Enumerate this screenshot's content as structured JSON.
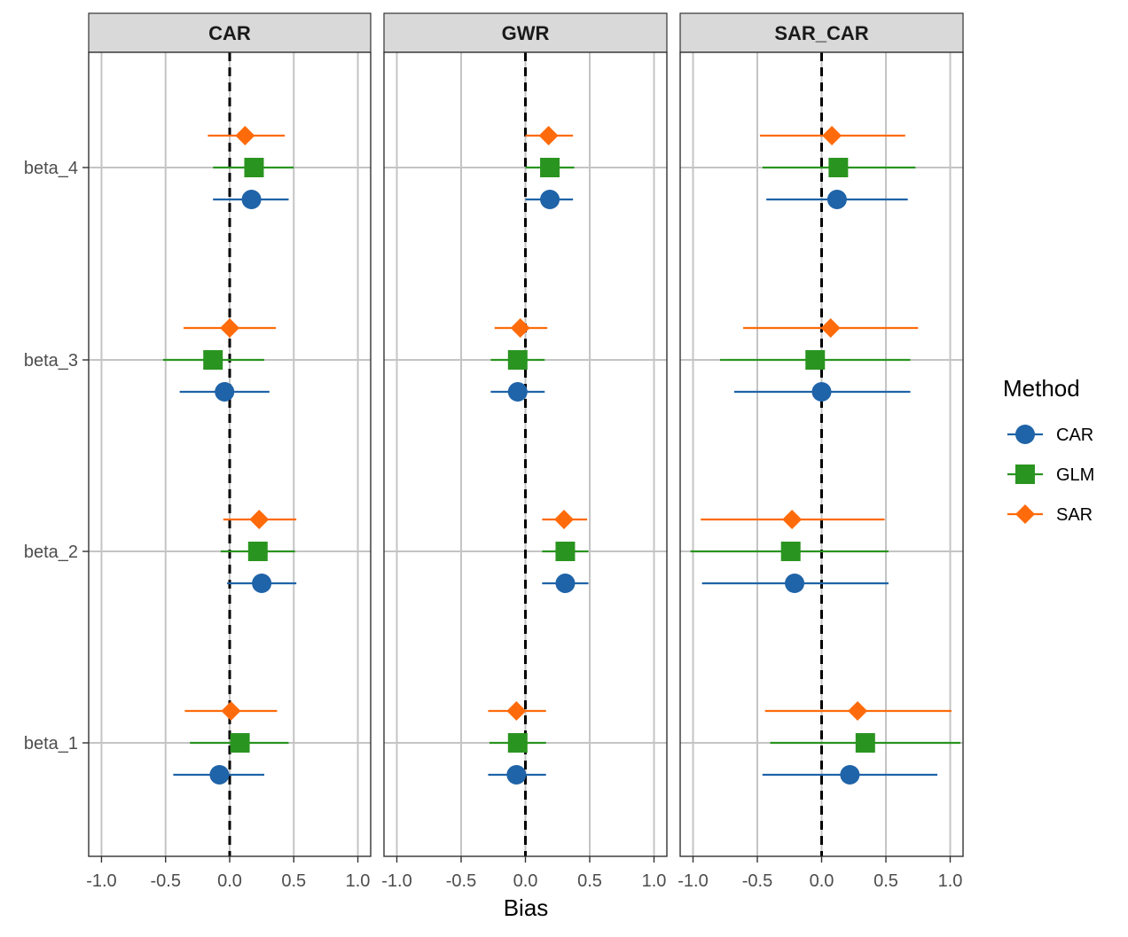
{
  "chart_data": {
    "type": "scatter",
    "subtype": "faceted-forest-plot",
    "x_label": "Bias",
    "xlim": [
      -1.1,
      1.1
    ],
    "x_ticks": [
      -1.0,
      -0.5,
      0.0,
      0.5,
      1.0
    ],
    "x_tick_labels": [
      "-1.0",
      "-0.5",
      "0.0",
      "0.5",
      "1.0"
    ],
    "reference_line": 0,
    "categories": [
      "beta_4",
      "beta_3",
      "beta_2",
      "beta_1"
    ],
    "grid": true,
    "legend": {
      "title": "Method",
      "placement": "right",
      "entries": [
        {
          "name": "CAR",
          "color": "#1f63a8",
          "shape": "circle"
        },
        {
          "name": "GLM",
          "color": "#2a9420",
          "shape": "square"
        },
        {
          "name": "SAR",
          "color": "#ff6b0a",
          "shape": "diamond"
        }
      ]
    },
    "facets": [
      {
        "title": "CAR",
        "series": [
          {
            "name": "CAR",
            "points": [
              {
                "category": "beta_4",
                "estimate": 0.17,
                "low": -0.13,
                "high": 0.46
              },
              {
                "category": "beta_3",
                "estimate": -0.04,
                "low": -0.39,
                "high": 0.31
              },
              {
                "category": "beta_2",
                "estimate": 0.25,
                "low": -0.02,
                "high": 0.52
              },
              {
                "category": "beta_1",
                "estimate": -0.08,
                "low": -0.44,
                "high": 0.27
              }
            ]
          },
          {
            "name": "GLM",
            "points": [
              {
                "category": "beta_4",
                "estimate": 0.19,
                "low": -0.13,
                "high": 0.5
              },
              {
                "category": "beta_3",
                "estimate": -0.13,
                "low": -0.52,
                "high": 0.27
              },
              {
                "category": "beta_2",
                "estimate": 0.22,
                "low": -0.07,
                "high": 0.51
              },
              {
                "category": "beta_1",
                "estimate": 0.08,
                "low": -0.31,
                "high": 0.46
              }
            ]
          },
          {
            "name": "SAR",
            "points": [
              {
                "category": "beta_4",
                "estimate": 0.12,
                "low": -0.17,
                "high": 0.43
              },
              {
                "category": "beta_3",
                "estimate": 0.0,
                "low": -0.36,
                "high": 0.36
              },
              {
                "category": "beta_2",
                "estimate": 0.23,
                "low": -0.05,
                "high": 0.52
              },
              {
                "category": "beta_1",
                "estimate": 0.01,
                "low": -0.35,
                "high": 0.37
              }
            ]
          }
        ]
      },
      {
        "title": "GWR",
        "series": [
          {
            "name": "CAR",
            "points": [
              {
                "category": "beta_4",
                "estimate": 0.19,
                "low": 0.0,
                "high": 0.37
              },
              {
                "category": "beta_3",
                "estimate": -0.06,
                "low": -0.27,
                "high": 0.15
              },
              {
                "category": "beta_2",
                "estimate": 0.31,
                "low": 0.13,
                "high": 0.49
              },
              {
                "category": "beta_1",
                "estimate": -0.07,
                "low": -0.29,
                "high": 0.16
              }
            ]
          },
          {
            "name": "GLM",
            "points": [
              {
                "category": "beta_4",
                "estimate": 0.19,
                "low": 0.0,
                "high": 0.38
              },
              {
                "category": "beta_3",
                "estimate": -0.06,
                "low": -0.27,
                "high": 0.15
              },
              {
                "category": "beta_2",
                "estimate": 0.31,
                "low": 0.13,
                "high": 0.49
              },
              {
                "category": "beta_1",
                "estimate": -0.06,
                "low": -0.28,
                "high": 0.16
              }
            ]
          },
          {
            "name": "SAR",
            "points": [
              {
                "category": "beta_4",
                "estimate": 0.18,
                "low": 0.0,
                "high": 0.37
              },
              {
                "category": "beta_3",
                "estimate": -0.04,
                "low": -0.24,
                "high": 0.17
              },
              {
                "category": "beta_2",
                "estimate": 0.3,
                "low": 0.13,
                "high": 0.48
              },
              {
                "category": "beta_1",
                "estimate": -0.07,
                "low": -0.29,
                "high": 0.16
              }
            ]
          }
        ]
      },
      {
        "title": "SAR_CAR",
        "series": [
          {
            "name": "CAR",
            "points": [
              {
                "category": "beta_4",
                "estimate": 0.12,
                "low": -0.43,
                "high": 0.67
              },
              {
                "category": "beta_3",
                "estimate": 0.0,
                "low": -0.68,
                "high": 0.69
              },
              {
                "category": "beta_2",
                "estimate": -0.21,
                "low": -0.93,
                "high": 0.52
              },
              {
                "category": "beta_1",
                "estimate": 0.22,
                "low": -0.46,
                "high": 0.9
              }
            ]
          },
          {
            "name": "GLM",
            "points": [
              {
                "category": "beta_4",
                "estimate": 0.13,
                "low": -0.46,
                "high": 0.73
              },
              {
                "category": "beta_3",
                "estimate": -0.05,
                "low": -0.79,
                "high": 0.69
              },
              {
                "category": "beta_2",
                "estimate": -0.24,
                "low": -1.02,
                "high": 0.52
              },
              {
                "category": "beta_1",
                "estimate": 0.34,
                "low": -0.4,
                "high": 1.08
              }
            ]
          },
          {
            "name": "SAR",
            "points": [
              {
                "category": "beta_4",
                "estimate": 0.08,
                "low": -0.48,
                "high": 0.65
              },
              {
                "category": "beta_3",
                "estimate": 0.07,
                "low": -0.61,
                "high": 0.75
              },
              {
                "category": "beta_2",
                "estimate": -0.23,
                "low": -0.94,
                "high": 0.49
              },
              {
                "category": "beta_1",
                "estimate": 0.28,
                "low": -0.44,
                "high": 1.01
              }
            ]
          }
        ]
      }
    ]
  }
}
